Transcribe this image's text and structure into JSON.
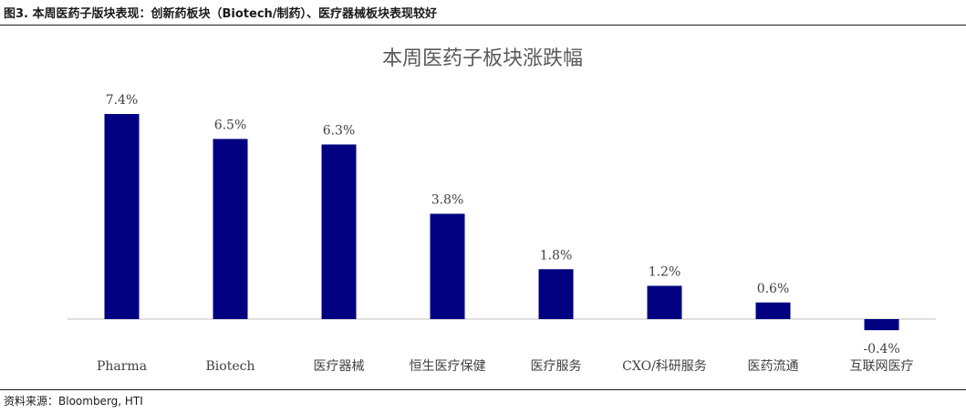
{
  "figure_caption": "图3.  本周医药子版块表现：创新药板块（Biotech/制药）、医疗器械板块表现较好",
  "source_note": "资料来源：Bloomberg, HTI",
  "colors": {
    "bar": "#000080",
    "axis": "#bfbfbf",
    "text": "#404040"
  },
  "chart_data": {
    "type": "bar",
    "title": "本周医药子板块涨跌幅",
    "categories": [
      "Pharma",
      "Biotech",
      "医疗器械",
      "恒生医疗保健",
      "医疗服务",
      "CXO/科研服务",
      "医药流通",
      "互联网医疗"
    ],
    "values": [
      7.4,
      6.5,
      6.3,
      3.8,
      1.8,
      1.2,
      0.6,
      -0.4
    ],
    "data_labels": [
      "7.4%",
      "6.5%",
      "6.3%",
      "3.8%",
      "1.8%",
      "1.2%",
      "0.6%",
      "-0.4%"
    ],
    "xlabel": "",
    "ylabel": "",
    "ylim": [
      -1,
      8
    ],
    "grid": false,
    "legend": "none"
  }
}
